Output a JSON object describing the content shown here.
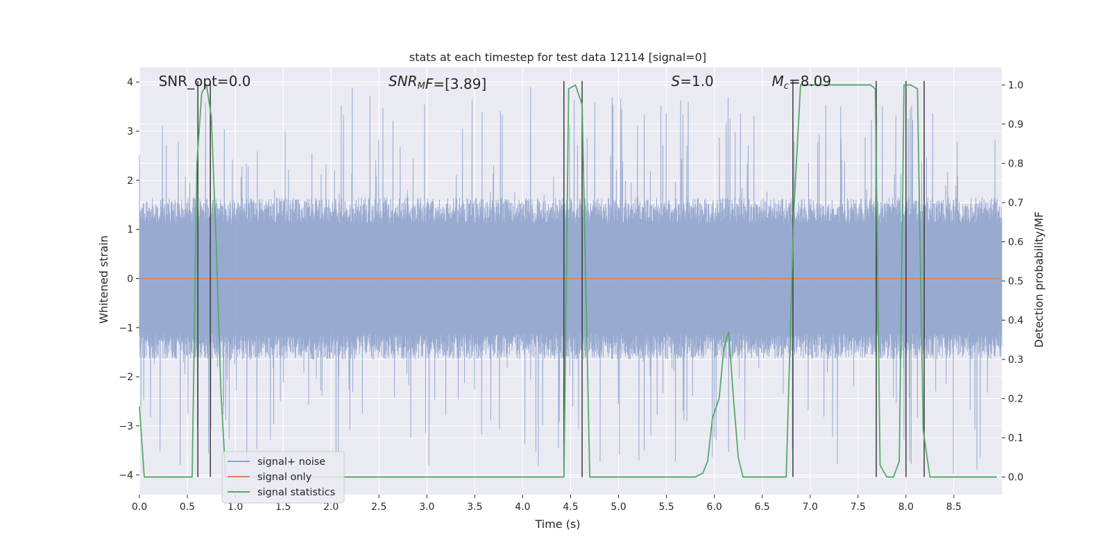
{
  "chart_data": {
    "type": "line",
    "title": "stats at each timestep for test data 12114 [signal=0]",
    "xlabel": "Time (s)",
    "ylabel_left": "Whitened strain",
    "ylabel_right": "Detection probability/MF",
    "xlim": [
      0,
      9.0
    ],
    "ylim_left": [
      -4.4,
      4.3
    ],
    "ylim_right": [
      -0.045,
      1.045
    ],
    "x_ticks": [
      0.0,
      0.5,
      1.0,
      1.5,
      2.0,
      2.5,
      3.0,
      3.5,
      4.0,
      4.5,
      5.0,
      5.5,
      6.0,
      6.5,
      7.0,
      7.5,
      8.0,
      8.5
    ],
    "x_tick_labels": [
      "0.0",
      "0.5",
      "1.0",
      "1.5",
      "2.0",
      "2.5",
      "3.0",
      "3.5",
      "4.0",
      "4.5",
      "5.0",
      "5.5",
      "6.0",
      "6.5",
      "7.0",
      "7.5",
      "8.0",
      "8.5"
    ],
    "y_ticks_left": [
      -4,
      -3,
      -2,
      -1,
      0,
      1,
      2,
      3,
      4
    ],
    "y_tick_labels_left": [
      "−4",
      "−3",
      "−2",
      "−1",
      "0",
      "1",
      "2",
      "3",
      "4"
    ],
    "y_ticks_right": [
      0.0,
      0.1,
      0.2,
      0.3,
      0.4,
      0.5,
      0.6,
      0.7,
      0.8,
      0.9,
      1.0
    ],
    "y_tick_labels_right": [
      "0.0",
      "0.1",
      "0.2",
      "0.3",
      "0.4",
      "0.5",
      "0.6",
      "0.7",
      "0.8",
      "0.9",
      "1.0"
    ],
    "grid": true,
    "legend": "lower-left",
    "annotations": [
      {
        "label": "SNR_opt=0.0",
        "x": 0.2
      },
      {
        "label": "SNR_MF=[3.89]",
        "x": 2.6,
        "rich": [
          {
            "t": "SNR",
            "style": "italic"
          },
          {
            "t": "M",
            "style": "italic-sub"
          },
          {
            "t": "F",
            "style": "italic"
          },
          {
            "t": "=[3.89]",
            "style": "normal"
          }
        ]
      },
      {
        "label": "S=1.0",
        "x": 5.55,
        "rich": [
          {
            "t": "S",
            "style": "italic"
          },
          {
            "t": "=1.0",
            "style": "normal"
          }
        ]
      },
      {
        "label": "M_c=8.09",
        "x": 6.6,
        "rich": [
          {
            "t": "M",
            "style": "italic"
          },
          {
            "t": "c",
            "style": "italic-sub"
          },
          {
            "t": "=8.09",
            "style": "normal"
          }
        ]
      }
    ],
    "series": [
      {
        "name": "signal+ noise",
        "axis": "left",
        "color": "#8fa3cc",
        "kind": "noise",
        "envelope_typical": 1.5,
        "envelope_peak": 3.9
      },
      {
        "name": "signal only",
        "axis": "left",
        "color": "#dd8452",
        "x": [
          0.0,
          9.0
        ],
        "y": [
          0.0,
          0.0
        ]
      },
      {
        "name": "signal statistics",
        "axis": "right",
        "color": "#55a868",
        "x": [
          0.0,
          0.05,
          0.1,
          0.55,
          0.6,
          0.65,
          0.7,
          0.75,
          0.8,
          0.85,
          0.9,
          4.43,
          4.48,
          4.55,
          4.62,
          4.7,
          5.8,
          5.88,
          5.93,
          5.98,
          6.05,
          6.1,
          6.15,
          6.2,
          6.25,
          6.3,
          6.75,
          6.83,
          6.9,
          7.63,
          7.68,
          7.73,
          7.8,
          7.87,
          7.93,
          7.98,
          8.05,
          8.12,
          8.18,
          8.25,
          8.3,
          8.95
        ],
        "y": [
          0.18,
          0.0,
          0.0,
          0.0,
          0.8,
          0.98,
          1.0,
          0.92,
          0.6,
          0.22,
          0.0,
          0.0,
          0.99,
          1.0,
          0.95,
          0.0,
          0.0,
          0.01,
          0.04,
          0.15,
          0.2,
          0.33,
          0.37,
          0.2,
          0.05,
          0.0,
          0.0,
          0.68,
          1.0,
          1.0,
          0.99,
          0.03,
          0.0,
          0.0,
          0.04,
          1.0,
          1.0,
          0.99,
          0.12,
          0.0,
          0.0,
          0.0
        ]
      }
    ],
    "vertical_markers": [
      0.61,
      0.74,
      4.43,
      4.62,
      6.82,
      7.69,
      8.0,
      8.19
    ],
    "vertical_marker_color": "#3a3a3a"
  }
}
